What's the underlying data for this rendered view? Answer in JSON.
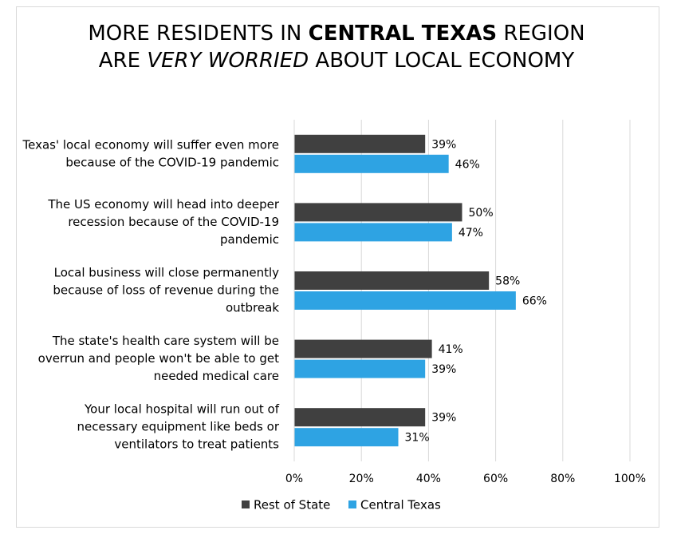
{
  "chart_data": {
    "type": "hbar",
    "title": [
      [
        {
          "text": "MORE RESIDENTS IN "
        },
        {
          "text": "CENTRAL TEXAS",
          "bold": true
        },
        {
          "text": " REGION"
        }
      ],
      [
        {
          "text": "ARE "
        },
        {
          "text": "VERY WORRIED",
          "italic": true
        },
        {
          "text": " ABOUT LOCAL ECONOMY"
        }
      ]
    ],
    "categories": [
      [
        "Texas' local economy will suffer even more",
        "because of the COVID-19 pandemic"
      ],
      [
        "The US economy will head into deeper",
        "recession because of the COVID-19",
        "pandemic"
      ],
      [
        "Local business will close permanently",
        "because of loss of revenue during the",
        "outbreak"
      ],
      [
        "The state's health care system will be",
        "overrun and people won't be able to get",
        "needed medical care"
      ],
      [
        "Your local hospital will run out of",
        "necessary equipment like beds or",
        "ventilators to treat patients"
      ]
    ],
    "series": [
      {
        "name": "Rest of State",
        "color": "#404040",
        "values": [
          39,
          50,
          58,
          41,
          39
        ],
        "value_labels": [
          "39%",
          "50%",
          "58%",
          "41%",
          "39%"
        ]
      },
      {
        "name": "Central Texas",
        "color": "#2ea3e3",
        "values": [
          46,
          47,
          66,
          39,
          31
        ],
        "value_labels": [
          "46%",
          "47%",
          "66%",
          "39%",
          "31%"
        ]
      }
    ],
    "xlim": [
      0,
      100
    ],
    "xticks": [
      {
        "value": 0,
        "label": "0%"
      },
      {
        "value": 20,
        "label": "20%"
      },
      {
        "value": 40,
        "label": "40%"
      },
      {
        "value": 60,
        "label": "60%"
      },
      {
        "value": 80,
        "label": "80%"
      },
      {
        "value": 100,
        "label": "100%"
      }
    ],
    "grid": true,
    "legend": "bottom"
  }
}
